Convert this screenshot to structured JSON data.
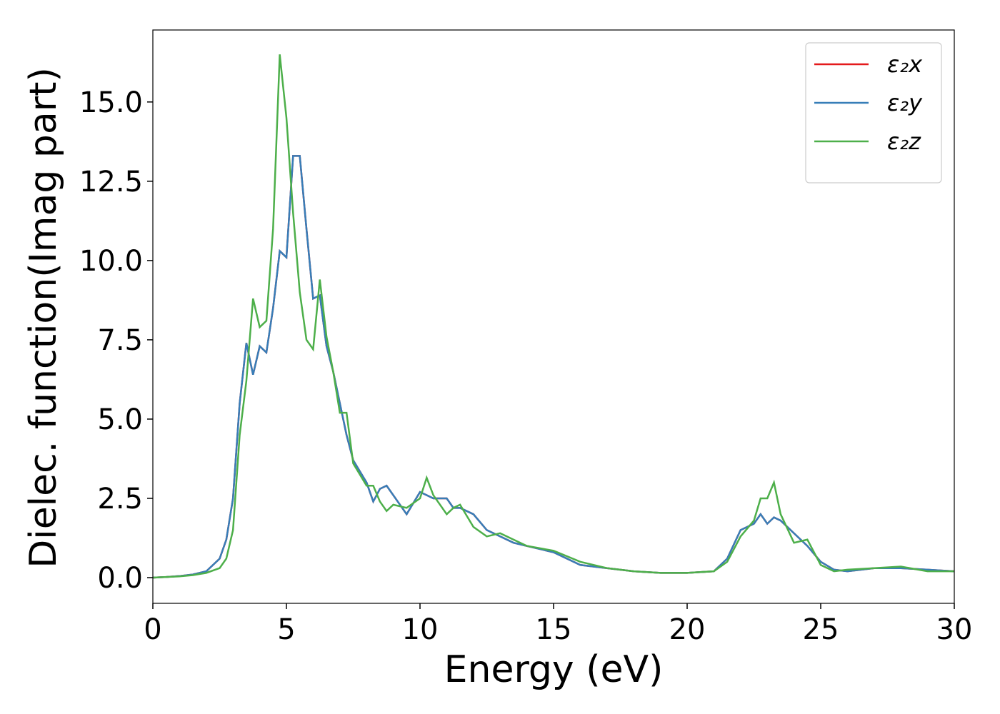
{
  "chart_data": {
    "type": "line",
    "xlabel": "Energy (eV)",
    "ylabel": "Dielec. function(Imag part)",
    "x": [
      0,
      0.5,
      1,
      1.5,
      2,
      2.5,
      2.75,
      3,
      3.25,
      3.5,
      3.75,
      4,
      4.25,
      4.5,
      4.75,
      5,
      5.25,
      5.5,
      5.75,
      6,
      6.25,
      6.5,
      6.75,
      7,
      7.25,
      7.5,
      8,
      8.25,
      8.5,
      8.75,
      9,
      9.5,
      10,
      10.25,
      10.5,
      11,
      11.25,
      11.5,
      12,
      12.5,
      13,
      13.5,
      14,
      15,
      16,
      17,
      18,
      19,
      20,
      21,
      21.5,
      22,
      22.5,
      22.75,
      23,
      23.25,
      23.5,
      24,
      24.5,
      25,
      25.5,
      26,
      27,
      28,
      29,
      30
    ],
    "series": [
      {
        "name": "ε₂x",
        "color": "#e41a1c",
        "values": [
          0,
          0.02,
          0.05,
          0.1,
          0.2,
          0.6,
          1.2,
          2.5,
          5.5,
          7.4,
          6.4,
          7.3,
          7.1,
          8.5,
          10.3,
          10.1,
          13.3,
          13.3,
          11.0,
          8.8,
          8.9,
          7.3,
          6.5,
          5.5,
          4.5,
          3.7,
          3.0,
          2.4,
          2.8,
          2.9,
          2.6,
          2.0,
          2.7,
          2.6,
          2.5,
          2.5,
          2.2,
          2.2,
          2.0,
          1.5,
          1.3,
          1.1,
          1.0,
          0.8,
          0.4,
          0.3,
          0.2,
          0.15,
          0.15,
          0.2,
          0.6,
          1.5,
          1.7,
          2.0,
          1.7,
          1.9,
          1.8,
          1.4,
          1.0,
          0.5,
          0.25,
          0.2,
          0.3,
          0.3,
          0.25,
          0.2
        ]
      },
      {
        "name": "ε₂y",
        "color": "#377eb8",
        "values": [
          0,
          0.02,
          0.05,
          0.1,
          0.2,
          0.6,
          1.2,
          2.5,
          5.5,
          7.4,
          6.4,
          7.3,
          7.1,
          8.5,
          10.3,
          10.1,
          13.3,
          13.3,
          11.0,
          8.8,
          8.9,
          7.3,
          6.5,
          5.5,
          4.5,
          3.7,
          3.0,
          2.4,
          2.8,
          2.9,
          2.6,
          2.0,
          2.7,
          2.6,
          2.5,
          2.5,
          2.2,
          2.2,
          2.0,
          1.5,
          1.3,
          1.1,
          1.0,
          0.8,
          0.4,
          0.3,
          0.2,
          0.15,
          0.15,
          0.2,
          0.6,
          1.5,
          1.7,
          2.0,
          1.7,
          1.9,
          1.8,
          1.4,
          1.0,
          0.5,
          0.25,
          0.2,
          0.3,
          0.3,
          0.25,
          0.2
        ]
      },
      {
        "name": "ε₂z",
        "color": "#4daf4a",
        "values": [
          0,
          0.02,
          0.04,
          0.08,
          0.15,
          0.3,
          0.6,
          1.5,
          4.5,
          6.2,
          8.8,
          7.9,
          8.1,
          11.0,
          16.5,
          14.5,
          11.5,
          9.0,
          7.5,
          7.2,
          9.4,
          7.6,
          6.5,
          5.2,
          5.2,
          3.6,
          2.9,
          2.9,
          2.4,
          2.1,
          2.3,
          2.2,
          2.5,
          3.15,
          2.6,
          2.0,
          2.2,
          2.3,
          1.6,
          1.3,
          1.4,
          1.2,
          1.0,
          0.85,
          0.5,
          0.3,
          0.2,
          0.15,
          0.15,
          0.2,
          0.5,
          1.3,
          1.8,
          2.5,
          2.5,
          3.0,
          2.0,
          1.1,
          1.2,
          0.4,
          0.2,
          0.25,
          0.3,
          0.35,
          0.2,
          0.2
        ]
      }
    ],
    "xlim": [
      0,
      30
    ],
    "ylim": [
      -0.81,
      17.27
    ],
    "xticks": [
      0,
      5,
      10,
      15,
      20,
      25,
      30
    ],
    "yticks": [
      {
        "value": 0,
        "label": "0.0"
      },
      2.5,
      {
        "value": 5,
        "label": "5.0"
      },
      7.5,
      {
        "value": 10,
        "label": "10.0"
      },
      12.5,
      {
        "value": 15,
        "label": "15.0"
      }
    ],
    "legend": "upper right",
    "grid": false
  }
}
